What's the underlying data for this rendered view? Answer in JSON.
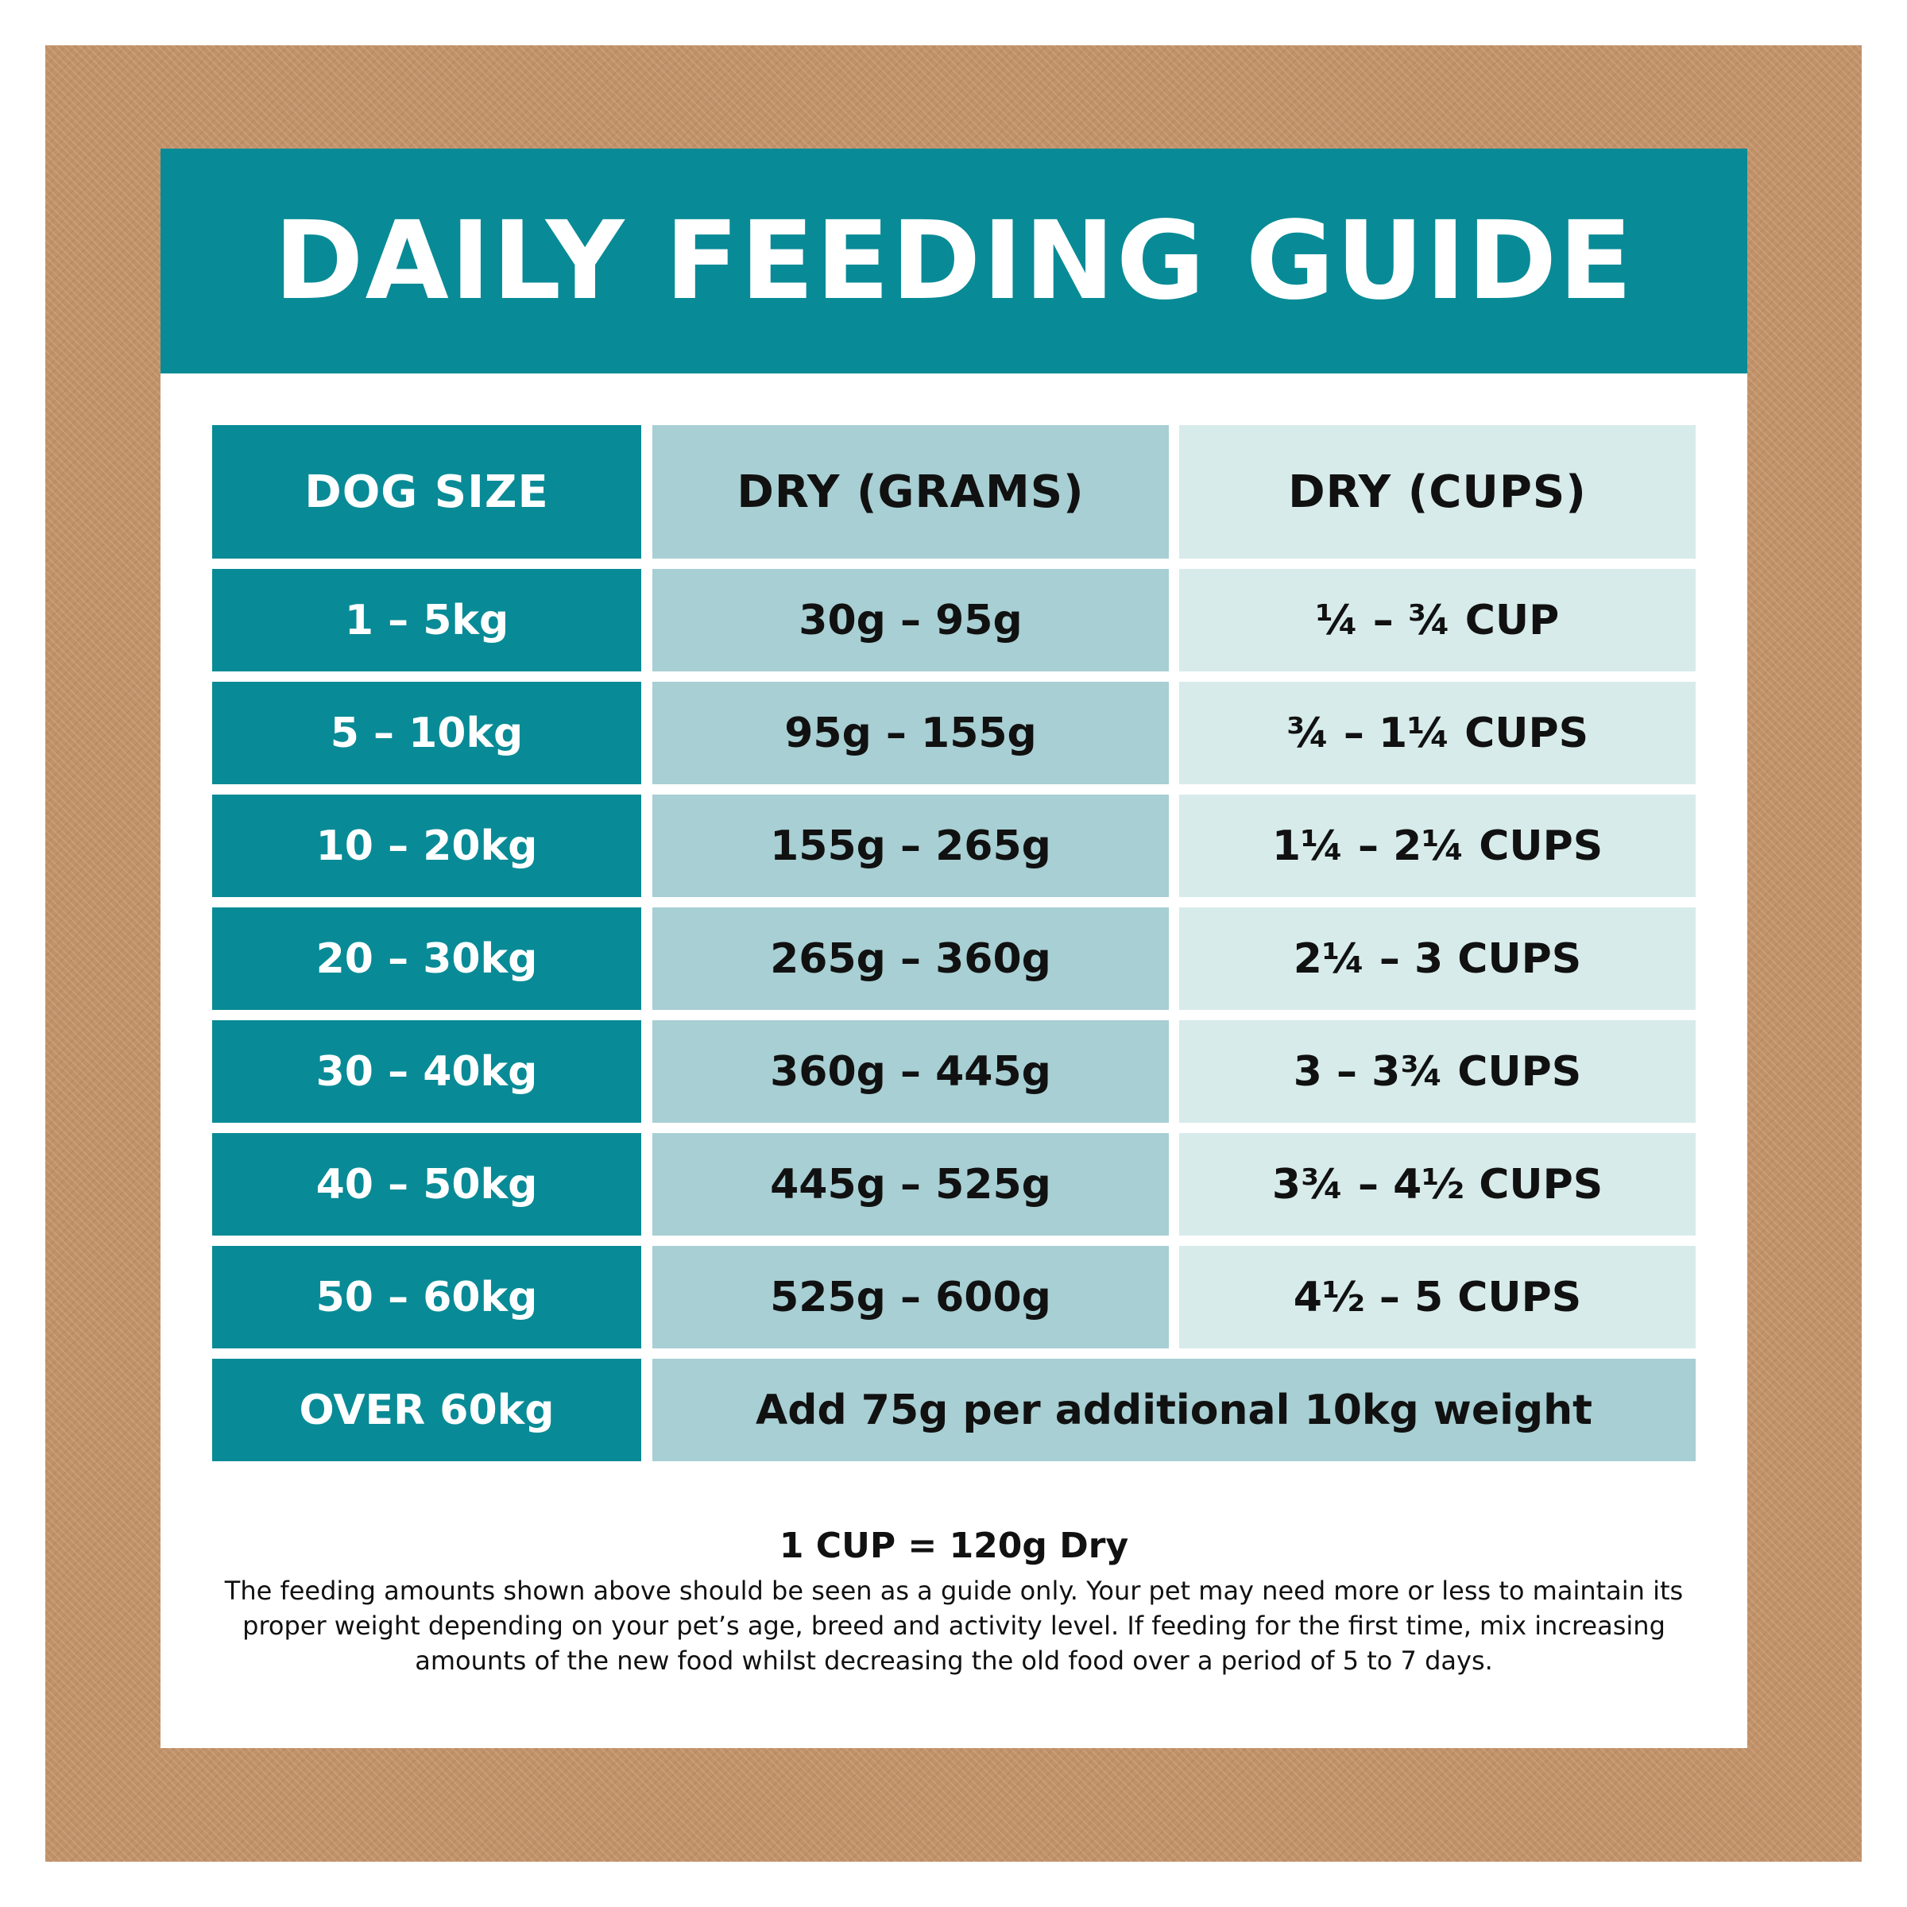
{
  "title": "DAILY FEEDING GUIDE",
  "table": {
    "headers": [
      "DOG SIZE",
      "DRY (GRAMS)",
      "DRY (CUPS)"
    ],
    "rows": [
      {
        "size": "1 – 5kg",
        "grams": "30g – 95g",
        "cups": "¼ – ¾ CUP"
      },
      {
        "size": "5 – 10kg",
        "grams": "95g – 155g",
        "cups": "¾ – 1¼ CUPS"
      },
      {
        "size": "10 – 20kg",
        "grams": "155g – 265g",
        "cups": "1¼ – 2¼ CUPS"
      },
      {
        "size": "20 – 30kg",
        "grams": "265g – 360g",
        "cups": "2¼ – 3 CUPS"
      },
      {
        "size": "30 – 40kg",
        "grams": "360g – 445g",
        "cups": "3 – 3¾ CUPS"
      },
      {
        "size": "40 – 50kg",
        "grams": "445g – 525g",
        "cups": "3¾ – 4½ CUPS"
      },
      {
        "size": "50 – 60kg",
        "grams": "525g – 600g",
        "cups": "4½ – 5 CUPS"
      }
    ],
    "last_row": {
      "size": "OVER 60kg",
      "note": "Add 75g per additional 10kg weight"
    }
  },
  "footer": {
    "cup_conversion": "1 CUP = 120g Dry",
    "disclaimer": "The feeding amounts shown above should be seen as a guide only. Your pet may need more or less to maintain its proper weight depending on your pet’s age, breed and activity level. If feeding for the first time, mix increasing amounts of the new food whilst decreasing the old food over a period of 5 to 7 days."
  },
  "colors": {
    "teal": "#088b96",
    "mid_teal": "#a8cfd3",
    "light_teal": "#d7ebea",
    "kraft": "#c1926a"
  }
}
